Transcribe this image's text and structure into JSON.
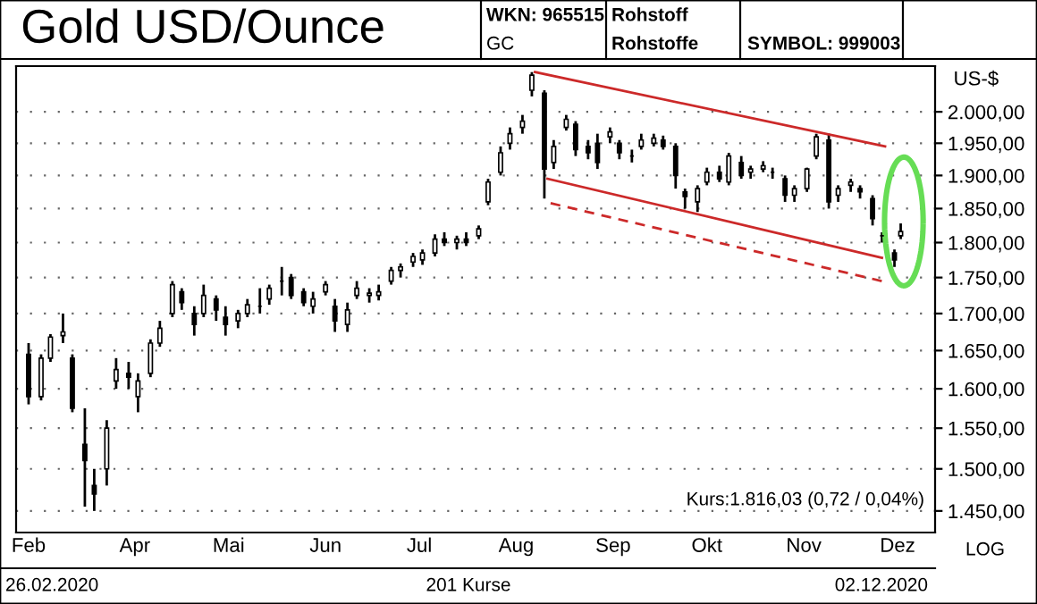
{
  "chart_data": {
    "type": "candlestick",
    "title": "Gold USD/Ounce",
    "ylabel": "US-$",
    "annotations": [
      "WKN: 965515",
      "GC",
      "Rohstoff",
      "Rohstoffe",
      "SYMBOL: 999003",
      "Kurs:1.816,03 (0,72 / 0,04%)",
      "26.02.2020",
      "201 Kurse",
      "02.12.2020",
      "LOG"
    ],
    "log": true,
    "grid": "y",
    "xlim": [
      "2020-02-23",
      "2020-12-13"
    ],
    "ylim": [
      1425,
      2075
    ],
    "xticks": [
      {
        "value": "2020-02-27",
        "label": "Feb"
      },
      {
        "value": "2020-04-01",
        "label": "Apr"
      },
      {
        "value": "2020-05-01",
        "label": "Mai"
      },
      {
        "value": "2020-06-01",
        "label": "Jun"
      },
      {
        "value": "2020-07-01",
        "label": "Jul"
      },
      {
        "value": "2020-08-01",
        "label": "Aug"
      },
      {
        "value": "2020-09-01",
        "label": "Sep"
      },
      {
        "value": "2020-10-01",
        "label": "Okt"
      },
      {
        "value": "2020-11-01",
        "label": "Nov"
      },
      {
        "value": "2020-12-01",
        "label": "Dez"
      }
    ],
    "yticks": [
      {
        "value": 1450,
        "label": "1.450,00"
      },
      {
        "value": 1500,
        "label": "1.500,00"
      },
      {
        "value": 1550,
        "label": "1.550,00"
      },
      {
        "value": 1600,
        "label": "1.600,00"
      },
      {
        "value": 1650,
        "label": "1.650,00"
      },
      {
        "value": 1700,
        "label": "1.700,00"
      },
      {
        "value": 1750,
        "label": "1.750,00"
      },
      {
        "value": 1800,
        "label": "1.800,00"
      },
      {
        "value": 1850,
        "label": "1.850,00"
      },
      {
        "value": 1900,
        "label": "1.900,00"
      },
      {
        "value": 1950,
        "label": "1.950,00"
      },
      {
        "value": 2000,
        "label": "2.000,00"
      }
    ],
    "series": [
      {
        "color": "#000000",
        "x": [
          "2020-02-27",
          "2020-03-02",
          "2020-03-05",
          "2020-03-09",
          "2020-03-12",
          "2020-03-16",
          "2020-03-19",
          "2020-03-23",
          "2020-03-26",
          "2020-03-30",
          "2020-04-02",
          "2020-04-06",
          "2020-04-09",
          "2020-04-13",
          "2020-04-16",
          "2020-04-20",
          "2020-04-23",
          "2020-04-27",
          "2020-04-30",
          "2020-05-04",
          "2020-05-07",
          "2020-05-11",
          "2020-05-14",
          "2020-05-18",
          "2020-05-21",
          "2020-05-25",
          "2020-05-28",
          "2020-06-01",
          "2020-06-04",
          "2020-06-08",
          "2020-06-11",
          "2020-06-15",
          "2020-06-18",
          "2020-06-22",
          "2020-06-25",
          "2020-06-29",
          "2020-07-02",
          "2020-07-06",
          "2020-07-09",
          "2020-07-13",
          "2020-07-16",
          "2020-07-20",
          "2020-07-23",
          "2020-07-27",
          "2020-07-30",
          "2020-08-03",
          "2020-08-06",
          "2020-08-10",
          "2020-08-13",
          "2020-08-17",
          "2020-08-20",
          "2020-08-24",
          "2020-08-27",
          "2020-08-31",
          "2020-09-03",
          "2020-09-07",
          "2020-09-10",
          "2020-09-14",
          "2020-09-17",
          "2020-09-21",
          "2020-09-24",
          "2020-09-28",
          "2020-10-01",
          "2020-10-05",
          "2020-10-08",
          "2020-10-12",
          "2020-10-15",
          "2020-10-19",
          "2020-10-22",
          "2020-10-26",
          "2020-10-29",
          "2020-11-02",
          "2020-11-05",
          "2020-11-09",
          "2020-11-12",
          "2020-11-16",
          "2020-11-19",
          "2020-11-23",
          "2020-11-26",
          "2020-11-30",
          "2020-12-02"
        ],
        "ohlc": [
          [
            1645,
            1660,
            1580,
            1590
          ],
          [
            1590,
            1645,
            1585,
            1640
          ],
          [
            1640,
            1672,
            1635,
            1668
          ],
          [
            1670,
            1700,
            1660,
            1675
          ],
          [
            1640,
            1645,
            1570,
            1575
          ],
          [
            1530,
            1575,
            1455,
            1510
          ],
          [
            1480,
            1500,
            1450,
            1470
          ],
          [
            1500,
            1560,
            1480,
            1550
          ],
          [
            1610,
            1640,
            1600,
            1625
          ],
          [
            1620,
            1635,
            1600,
            1615
          ],
          [
            1590,
            1620,
            1570,
            1610
          ],
          [
            1620,
            1665,
            1615,
            1660
          ],
          [
            1660,
            1690,
            1655,
            1680
          ],
          [
            1700,
            1745,
            1695,
            1740
          ],
          [
            1730,
            1735,
            1705,
            1715
          ],
          [
            1700,
            1710,
            1670,
            1685
          ],
          [
            1700,
            1740,
            1695,
            1725
          ],
          [
            1720,
            1725,
            1690,
            1705
          ],
          [
            1695,
            1710,
            1670,
            1685
          ],
          [
            1690,
            1705,
            1680,
            1700
          ],
          [
            1700,
            1720,
            1695,
            1712
          ],
          [
            1710,
            1735,
            1700,
            1710
          ],
          [
            1720,
            1740,
            1712,
            1735
          ],
          [
            1745,
            1765,
            1725,
            1745
          ],
          [
            1750,
            1755,
            1720,
            1725
          ],
          [
            1730,
            1735,
            1710,
            1715
          ],
          [
            1710,
            1730,
            1700,
            1720
          ],
          [
            1730,
            1745,
            1725,
            1740
          ],
          [
            1710,
            1720,
            1675,
            1690
          ],
          [
            1685,
            1715,
            1675,
            1705
          ],
          [
            1725,
            1745,
            1720,
            1735
          ],
          [
            1725,
            1735,
            1715,
            1728
          ],
          [
            1725,
            1740,
            1718,
            1730
          ],
          [
            1745,
            1765,
            1740,
            1760
          ],
          [
            1760,
            1770,
            1750,
            1765
          ],
          [
            1772,
            1785,
            1765,
            1780
          ],
          [
            1775,
            1790,
            1768,
            1785
          ],
          [
            1785,
            1812,
            1780,
            1805
          ],
          [
            1805,
            1815,
            1795,
            1800
          ],
          [
            1800,
            1810,
            1790,
            1805
          ],
          [
            1805,
            1815,
            1795,
            1800
          ],
          [
            1810,
            1825,
            1805,
            1820
          ],
          [
            1860,
            1895,
            1855,
            1890
          ],
          [
            1905,
            1945,
            1900,
            1935
          ],
          [
            1950,
            1975,
            1940,
            1965
          ],
          [
            1975,
            1995,
            1965,
            1985
          ],
          [
            2035,
            2065,
            2025,
            2060
          ],
          [
            2030,
            2035,
            1865,
            1910
          ],
          [
            1920,
            1955,
            1910,
            1945
          ],
          [
            1975,
            1995,
            1970,
            1988
          ],
          [
            1980,
            1985,
            1930,
            1940
          ],
          [
            1945,
            1955,
            1925,
            1935
          ],
          [
            1950,
            1965,
            1910,
            1920
          ],
          [
            1960,
            1975,
            1950,
            1968
          ],
          [
            1950,
            1955,
            1925,
            1935
          ],
          [
            1930,
            1940,
            1920,
            1930
          ],
          [
            1945,
            1965,
            1940,
            1955
          ],
          [
            1950,
            1965,
            1945,
            1958
          ],
          [
            1955,
            1962,
            1940,
            1945
          ],
          [
            1945,
            1950,
            1880,
            1900
          ],
          [
            1875,
            1880,
            1850,
            1868
          ],
          [
            1860,
            1885,
            1845,
            1880
          ],
          [
            1890,
            1912,
            1885,
            1905
          ],
          [
            1905,
            1915,
            1890,
            1895
          ],
          [
            1890,
            1935,
            1885,
            1930
          ],
          [
            1920,
            1930,
            1895,
            1900
          ],
          [
            1905,
            1915,
            1895,
            1910
          ],
          [
            1910,
            1922,
            1905,
            1915
          ],
          [
            1905,
            1912,
            1895,
            1905
          ],
          [
            1895,
            1900,
            1860,
            1870
          ],
          [
            1870,
            1885,
            1860,
            1880
          ],
          [
            1880,
            1912,
            1875,
            1910
          ],
          [
            1930,
            1965,
            1925,
            1960
          ],
          [
            1955,
            1965,
            1850,
            1860
          ],
          [
            1870,
            1885,
            1860,
            1880
          ],
          [
            1885,
            1895,
            1875,
            1890
          ],
          [
            1880,
            1885,
            1865,
            1875
          ],
          [
            1865,
            1870,
            1825,
            1835
          ],
          [
            1810,
            1815,
            1800,
            1810
          ],
          [
            1785,
            1790,
            1765,
            1775
          ],
          [
            1810,
            1828,
            1805,
            1816
          ]
        ]
      },
      {
        "type": "line",
        "color": "#cc2929",
        "line_style": "solid",
        "x": [
          "2020-08-07",
          "2020-11-27"
        ],
        "values": [
          2065,
          1945
        ]
      },
      {
        "type": "line",
        "color": "#cc2929",
        "line_style": "solid",
        "x": [
          "2020-08-11",
          "2020-11-26"
        ],
        "values": [
          1895,
          1778
        ]
      },
      {
        "type": "line",
        "color": "#cc2929",
        "line_style": "dashed",
        "x": [
          "2020-08-12",
          "2020-11-26"
        ],
        "values": [
          1858,
          1745
        ]
      }
    ]
  }
}
